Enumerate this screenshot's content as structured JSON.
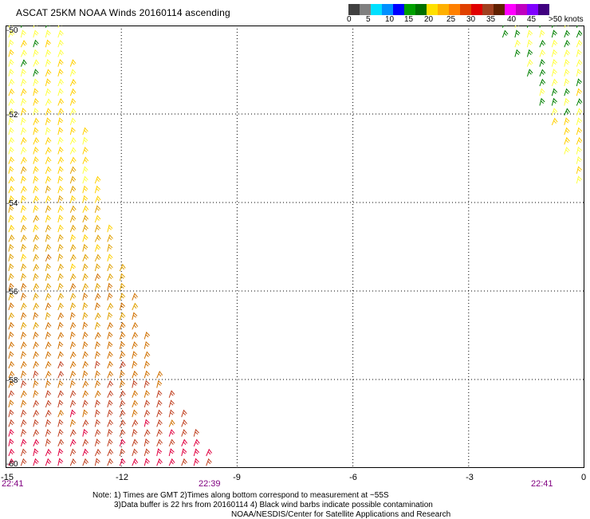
{
  "header": {
    "title": "ASCAT 25KM NOAA Winds 20160114 ascending"
  },
  "legend": {
    "segments": [
      {
        "color": "#404040"
      },
      {
        "color": "#808080"
      },
      {
        "color": "#00e0ff"
      },
      {
        "color": "#0090ff"
      },
      {
        "color": "#0000ff"
      },
      {
        "color": "#00a000"
      },
      {
        "color": "#007000"
      },
      {
        "color": "#ffe000"
      },
      {
        "color": "#ffb000"
      },
      {
        "color": "#ff8000"
      },
      {
        "color": "#e04000"
      },
      {
        "color": "#e00000"
      },
      {
        "color": "#a04020"
      },
      {
        "color": "#602000"
      },
      {
        "color": "#ff00ff"
      },
      {
        "color": "#c000c0"
      },
      {
        "color": "#8000ff"
      },
      {
        "color": "#400080"
      }
    ],
    "labels": [
      "0",
      "5",
      "10",
      "15",
      "20",
      "25",
      "30",
      "35",
      "40",
      "45",
      ">50 knots"
    ]
  },
  "chart_data": {
    "type": "map",
    "x_ticks": [
      -15,
      -12,
      -9,
      -6,
      -3,
      0
    ],
    "y_ticks": [
      -50,
      -52,
      -54,
      -56,
      -58,
      -60
    ],
    "xlim": [
      -15,
      0
    ],
    "ylim": [
      -60,
      -50
    ],
    "grid": true,
    "pass_times": [
      "22:41",
      "22:39",
      "22:41"
    ],
    "swaths": [
      {
        "name": "west",
        "polygon": [
          [
            -15,
            -50
          ],
          [
            -13.5,
            -50
          ],
          [
            -13.1,
            -52
          ],
          [
            -12.2,
            -55
          ],
          [
            -11.0,
            -58
          ],
          [
            -9.5,
            -60
          ],
          [
            -15,
            -60
          ]
        ],
        "speed_bands": [
          {
            "lat": -50,
            "knots": 20
          },
          {
            "lat": -53,
            "knots": 22
          },
          {
            "lat": -55,
            "knots": 25
          },
          {
            "lat": -58,
            "knots": 30
          },
          {
            "lat": -60,
            "knots": 35
          }
        ]
      },
      {
        "name": "east",
        "polygon": [
          [
            -2.4,
            -50
          ],
          [
            0,
            -50
          ],
          [
            0,
            -54
          ],
          [
            -0.9,
            -52.2
          ],
          [
            -2.0,
            -50.6
          ]
        ],
        "speed_bands": [
          {
            "lat": -50,
            "knots": 18
          },
          {
            "lat": -52,
            "knots": 20
          },
          {
            "lat": -54,
            "knots": 22
          }
        ]
      }
    ]
  },
  "footer": {
    "x_labels": [
      "-15",
      "-12",
      "-9",
      "-6",
      "-3",
      "0"
    ],
    "y_labels": [
      "-50",
      "-52",
      "-54",
      "-56",
      "-58",
      "-60"
    ],
    "times": [
      "22:41",
      "22:39",
      "22:41"
    ],
    "note1": "Note: 1) Times are GMT 2)Times along bottom correspond to measurement at ~55S",
    "note2": "3)Data buffer is 22 hrs from 20160114 4) Black wind barbs indicate possible contamination",
    "note3": "NOAA/NESDIS/Center for Satellite Applications and Research"
  }
}
